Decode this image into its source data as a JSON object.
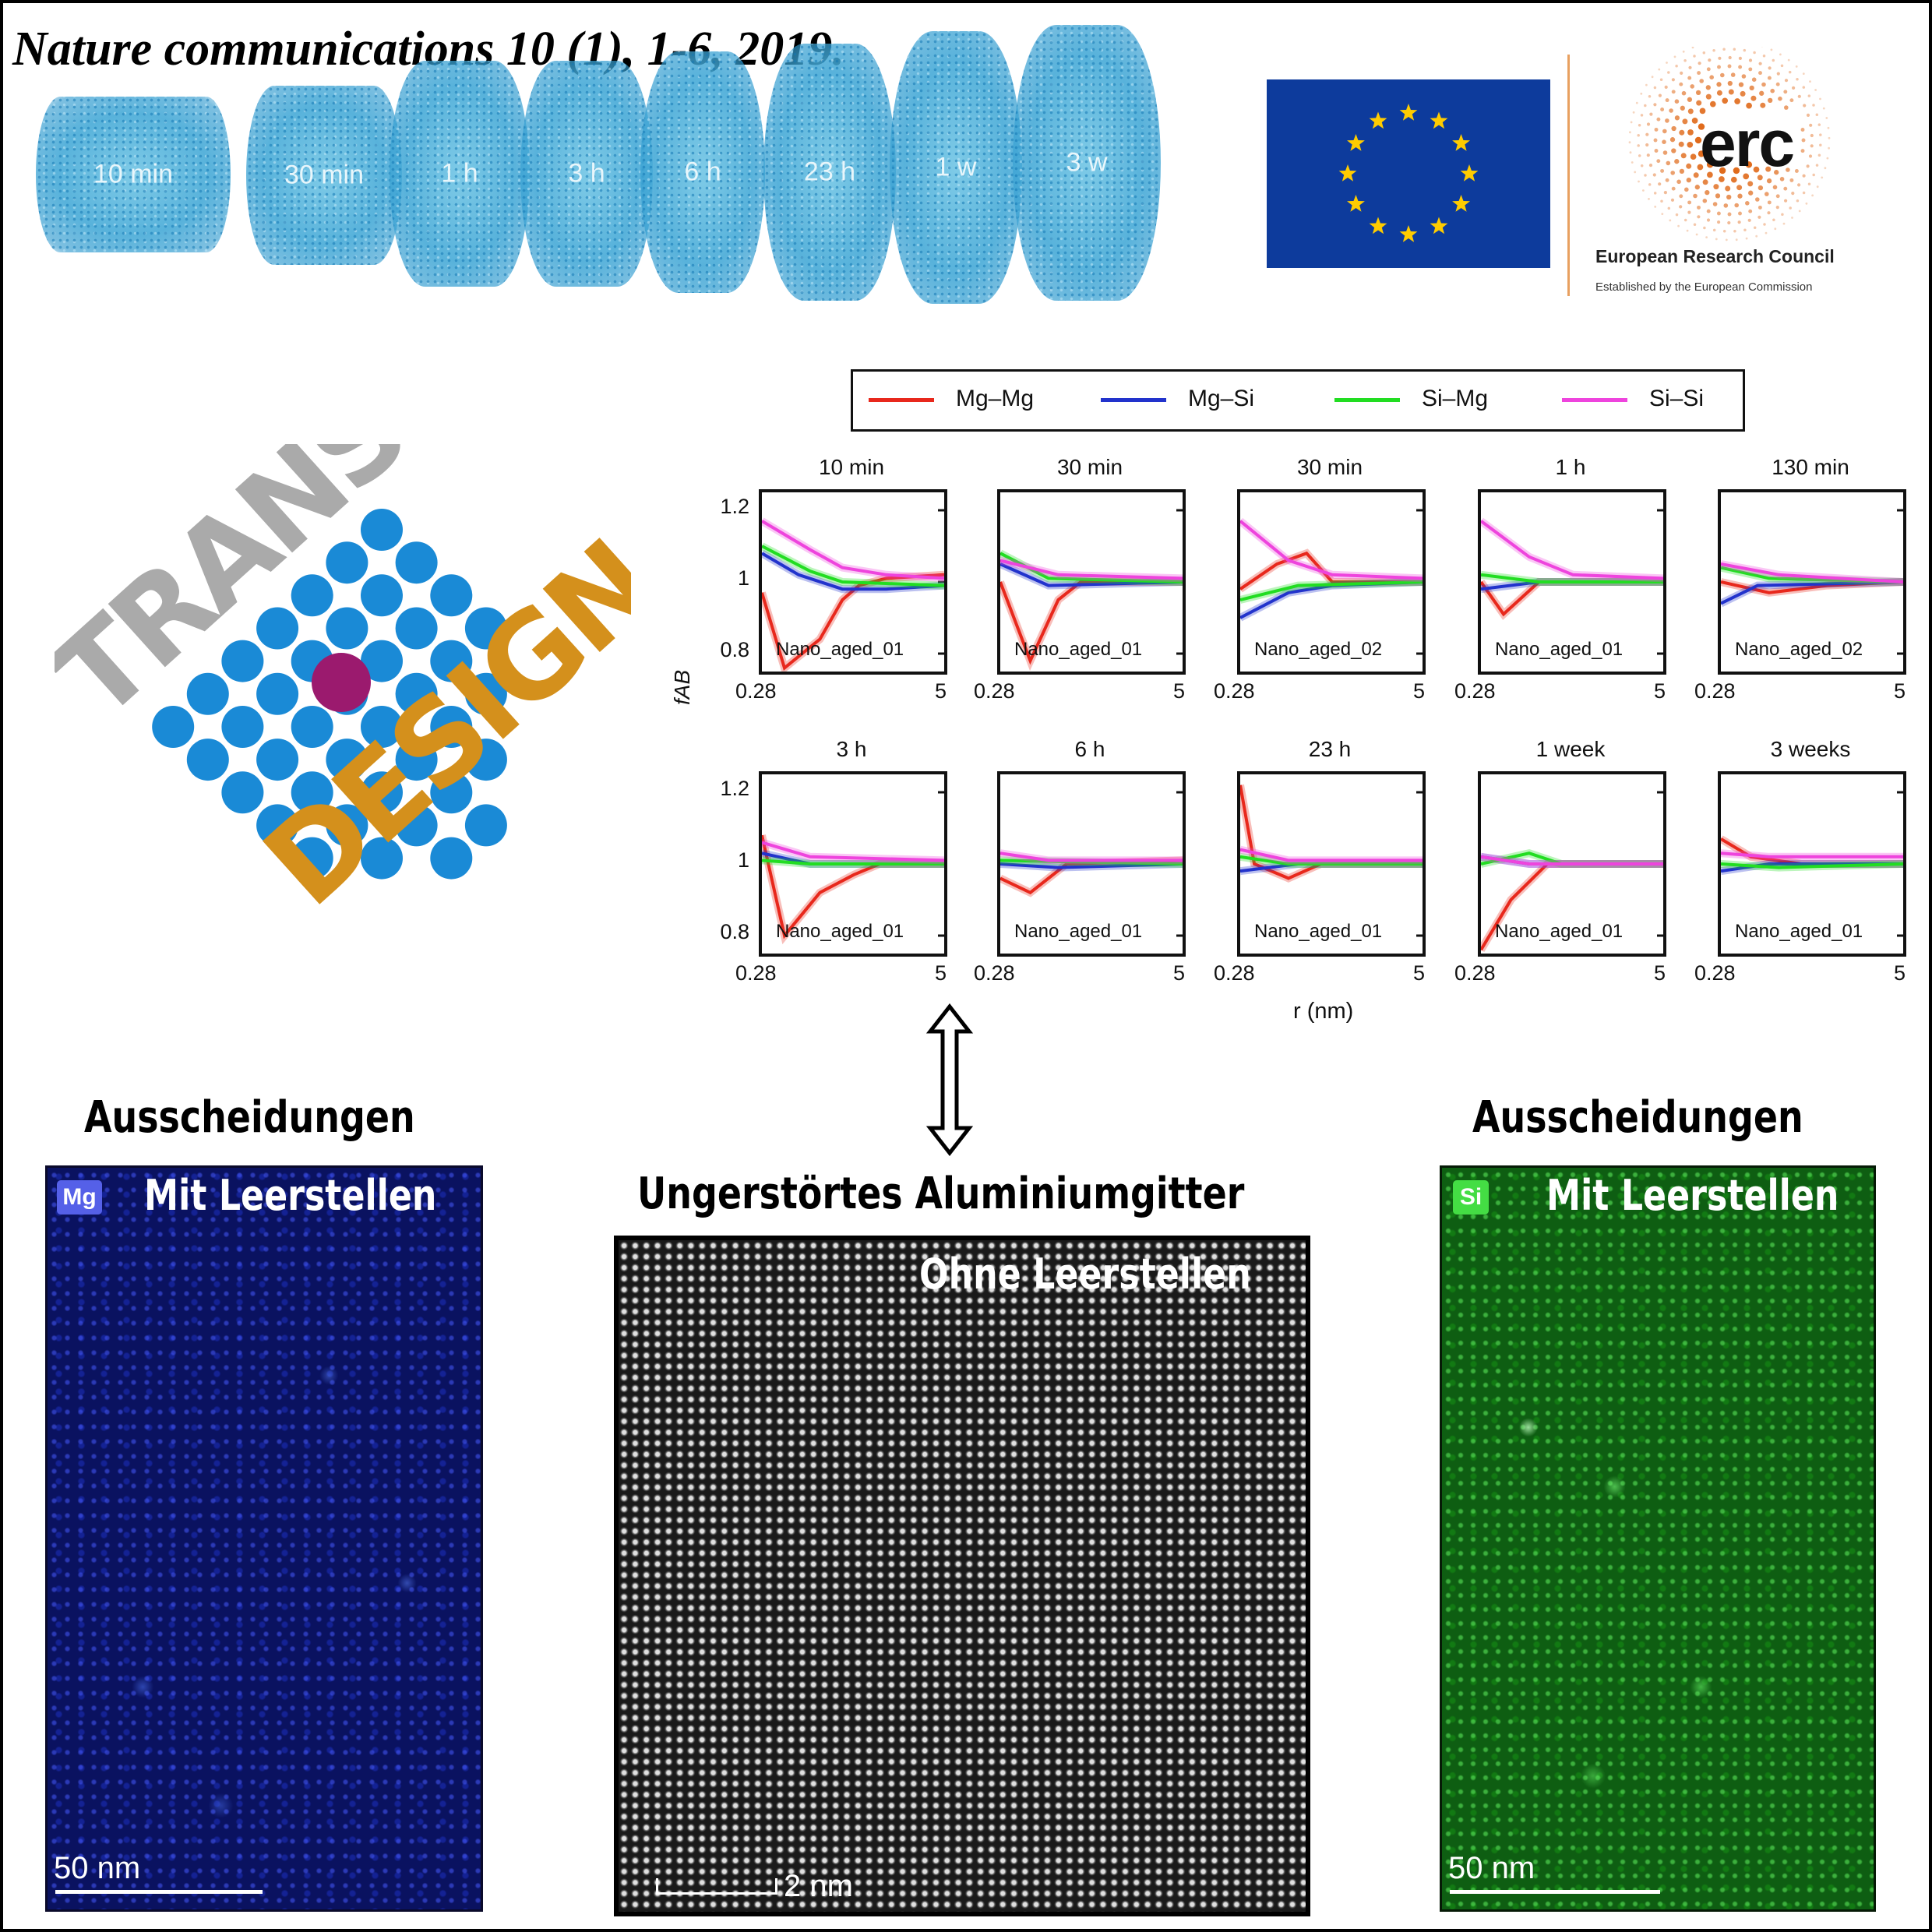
{
  "citation": "Nature communications 10 (1), 1-6, 2019.",
  "samples": [
    "10 min",
    "30 min",
    "1 h",
    "3 h",
    "6 h",
    "23 h",
    "1 w",
    "3 w"
  ],
  "logos": {
    "erc_acronym": "erc",
    "erc_name": "European Research Council",
    "erc_subtitle": "Established by the European Commission",
    "transdesign_top": "TRANS",
    "transdesign_bottom": "DESIGN"
  },
  "chart_data": {
    "type": "line",
    "ylabel": "fAB",
    "xlabel": "r (nm)",
    "xlim": [
      0.28,
      5
    ],
    "ylim": [
      0.75,
      1.25
    ],
    "xticks": [
      "0.28",
      "5"
    ],
    "yticks": [
      "0.8",
      "1",
      "1.2"
    ],
    "legend": [
      {
        "name": "Mg–Mg",
        "color": "#e8281c"
      },
      {
        "name": "Mg–Si",
        "color": "#2233cc"
      },
      {
        "name": "Si–Mg",
        "color": "#22dd22"
      },
      {
        "name": "Si–Si",
        "color": "#ee44dd"
      }
    ],
    "panels": [
      {
        "title": "10 min",
        "dataset": "Nano_aged_01",
        "curves": {
          "Mg–Mg": [
            [
              0.28,
              0.97
            ],
            [
              0.4,
              0.76
            ],
            [
              0.7,
              0.84
            ],
            [
              1.0,
              0.95
            ],
            [
              1.3,
              0.99
            ],
            [
              2,
              1.01
            ],
            [
              5,
              1.02
            ]
          ],
          "Mg–Si": [
            [
              0.28,
              1.08
            ],
            [
              0.5,
              1.02
            ],
            [
              1,
              0.98
            ],
            [
              2,
              0.98
            ],
            [
              5,
              0.99
            ]
          ],
          "Si–Mg": [
            [
              0.28,
              1.1
            ],
            [
              0.6,
              1.03
            ],
            [
              1,
              1.0
            ],
            [
              5,
              0.99
            ]
          ],
          "Si–Si": [
            [
              0.28,
              1.17
            ],
            [
              0.6,
              1.09
            ],
            [
              1,
              1.04
            ],
            [
              2,
              1.02
            ],
            [
              5,
              1.01
            ]
          ]
        }
      },
      {
        "title": "30 min",
        "dataset": "Nano_aged_01",
        "curves": {
          "Mg–Mg": [
            [
              0.28,
              1.0
            ],
            [
              0.45,
              0.78
            ],
            [
              0.7,
              0.95
            ],
            [
              1,
              1.0
            ],
            [
              5,
              1.0
            ]
          ],
          "Mg–Si": [
            [
              0.28,
              1.05
            ],
            [
              0.6,
              0.99
            ],
            [
              5,
              1.0
            ]
          ],
          "Si–Mg": [
            [
              0.28,
              1.08
            ],
            [
              0.6,
              1.01
            ],
            [
              5,
              1.0
            ]
          ],
          "Si–Si": [
            [
              0.28,
              1.06
            ],
            [
              0.7,
              1.02
            ],
            [
              5,
              1.01
            ]
          ]
        }
      },
      {
        "title": "30 min",
        "dataset": "Nano_aged_02",
        "curves": {
          "Mg–Mg": [
            [
              0.28,
              0.98
            ],
            [
              0.5,
              1.05
            ],
            [
              0.8,
              1.08
            ],
            [
              1.2,
              1.0
            ],
            [
              5,
              1.0
            ]
          ],
          "Mg–Si": [
            [
              0.28,
              0.9
            ],
            [
              0.6,
              0.97
            ],
            [
              1.2,
              0.99
            ],
            [
              5,
              1.0
            ]
          ],
          "Si–Mg": [
            [
              0.28,
              0.95
            ],
            [
              0.7,
              0.99
            ],
            [
              5,
              1.0
            ]
          ],
          "Si–Si": [
            [
              0.28,
              1.17
            ],
            [
              0.6,
              1.06
            ],
            [
              1.2,
              1.02
            ],
            [
              5,
              1.01
            ]
          ]
        }
      },
      {
        "title": "1 h",
        "dataset": "Nano_aged_01",
        "curves": {
          "Mg–Mg": [
            [
              0.28,
              1.0
            ],
            [
              0.4,
              0.91
            ],
            [
              0.7,
              1.0
            ],
            [
              5,
              1.0
            ]
          ],
          "Mg–Si": [
            [
              0.28,
              0.98
            ],
            [
              0.7,
              1.0
            ],
            [
              5,
              1.0
            ]
          ],
          "Si–Mg": [
            [
              0.28,
              1.02
            ],
            [
              0.7,
              1.0
            ],
            [
              5,
              1.0
            ]
          ],
          "Si–Si": [
            [
              0.28,
              1.17
            ],
            [
              0.6,
              1.07
            ],
            [
              1.2,
              1.02
            ],
            [
              5,
              1.01
            ]
          ]
        }
      },
      {
        "title": "130 min",
        "dataset": "Nano_aged_02",
        "curves": {
          "Mg–Mg": [
            [
              0.28,
              1.0
            ],
            [
              0.6,
              0.97
            ],
            [
              1.5,
              0.99
            ],
            [
              5,
              1.0
            ]
          ],
          "Mg–Si": [
            [
              0.28,
              0.94
            ],
            [
              0.5,
              0.99
            ],
            [
              5,
              1.0
            ]
          ],
          "Si–Mg": [
            [
              0.28,
              1.04
            ],
            [
              0.6,
              1.01
            ],
            [
              5,
              1.0
            ]
          ],
          "Si–Si": [
            [
              0.28,
              1.05
            ],
            [
              0.7,
              1.02
            ],
            [
              5,
              1.0
            ]
          ]
        }
      },
      {
        "title": "3 h",
        "dataset": "Nano_aged_01",
        "curves": {
          "Mg–Mg": [
            [
              0.28,
              1.08
            ],
            [
              0.4,
              0.8
            ],
            [
              0.7,
              0.92
            ],
            [
              1.2,
              0.97
            ],
            [
              1.8,
              1.0
            ],
            [
              5,
              1.0
            ]
          ],
          "Mg–Si": [
            [
              0.28,
              1.03
            ],
            [
              0.6,
              1.0
            ],
            [
              5,
              1.0
            ]
          ],
          "Si–Mg": [
            [
              0.28,
              1.01
            ],
            [
              0.6,
              1.0
            ],
            [
              5,
              1.0
            ]
          ],
          "Si–Si": [
            [
              0.28,
              1.06
            ],
            [
              0.6,
              1.02
            ],
            [
              5,
              1.01
            ]
          ]
        }
      },
      {
        "title": "6 h",
        "dataset": "Nano_aged_01",
        "curves": {
          "Mg–Mg": [
            [
              0.28,
              0.96
            ],
            [
              0.45,
              0.92
            ],
            [
              0.8,
              1.0
            ],
            [
              5,
              1.01
            ]
          ],
          "Mg–Si": [
            [
              0.28,
              1.0
            ],
            [
              0.7,
              0.99
            ],
            [
              5,
              1.0
            ]
          ],
          "Si–Mg": [
            [
              0.28,
              1.01
            ],
            [
              5,
              1.0
            ]
          ],
          "Si–Si": [
            [
              0.28,
              1.03
            ],
            [
              0.6,
              1.01
            ],
            [
              5,
              1.01
            ]
          ]
        }
      },
      {
        "title": "23 h",
        "dataset": "Nano_aged_01",
        "curves": {
          "Mg–Mg": [
            [
              0.28,
              1.22
            ],
            [
              0.35,
              1.0
            ],
            [
              0.6,
              0.96
            ],
            [
              1,
              1.0
            ],
            [
              5,
              1.0
            ]
          ],
          "Mg–Si": [
            [
              0.28,
              0.98
            ],
            [
              0.7,
              1.0
            ],
            [
              5,
              1.0
            ]
          ],
          "Si–Mg": [
            [
              0.28,
              1.02
            ],
            [
              0.6,
              1.0
            ],
            [
              5,
              1.0
            ]
          ],
          "Si–Si": [
            [
              0.28,
              1.04
            ],
            [
              0.6,
              1.01
            ],
            [
              5,
              1.01
            ]
          ]
        }
      },
      {
        "title": "1 week",
        "dataset": "Nano_aged_01",
        "curves": {
          "Mg–Mg": [
            [
              0.28,
              0.76
            ],
            [
              0.45,
              0.9
            ],
            [
              0.8,
              1.0
            ],
            [
              5,
              1.0
            ]
          ],
          "Mg–Si": [
            [
              0.28,
              1.02
            ],
            [
              0.6,
              1.0
            ],
            [
              5,
              1.0
            ]
          ],
          "Si–Mg": [
            [
              0.28,
              1.0
            ],
            [
              0.6,
              1.03
            ],
            [
              1,
              1.0
            ],
            [
              5,
              1.0
            ]
          ],
          "Si–Si": [
            [
              0.28,
              1.02
            ],
            [
              0.6,
              1.0
            ],
            [
              5,
              1.0
            ]
          ]
        }
      },
      {
        "title": "3 weeks",
        "dataset": "Nano_aged_01",
        "curves": {
          "Mg–Mg": [
            [
              0.28,
              1.07
            ],
            [
              0.45,
              1.02
            ],
            [
              1,
              1.0
            ],
            [
              5,
              1.0
            ]
          ],
          "Mg–Si": [
            [
              0.28,
              0.98
            ],
            [
              0.6,
              1.0
            ],
            [
              5,
              1.0
            ]
          ],
          "Si–Mg": [
            [
              0.28,
              1.0
            ],
            [
              0.7,
              0.99
            ],
            [
              5,
              1.0
            ]
          ],
          "Si–Si": [
            [
              0.28,
              1.03
            ],
            [
              0.6,
              1.02
            ],
            [
              5,
              1.02
            ]
          ]
        }
      }
    ]
  },
  "bottom": {
    "left_heading": "Ausscheidungen",
    "left_badge": "Mg",
    "left_overlay": "Mit Leerstellen",
    "left_scale": "50 nm",
    "center_heading": "Ungerstörtes Aluminiumgitter",
    "center_overlay": "Ohne Leerstellen",
    "center_scale": "2 nm",
    "right_heading": "Ausscheidungen",
    "right_badge": "Si",
    "right_overlay": "Mit Leerstellen",
    "right_scale": "50 nm"
  },
  "colors": {
    "mg_map": "#0a1260",
    "si_map": "#0e5e12",
    "erc_orange": "#e06b1c",
    "transdesign_gray": "#aaaaaa",
    "transdesign_orange": "#d4901c",
    "atom_blue": "#1a8ad6",
    "atom_purple": "#9b1a6e",
    "eu_blue": "#0d3b9c",
    "eu_star": "#ffcc00"
  }
}
